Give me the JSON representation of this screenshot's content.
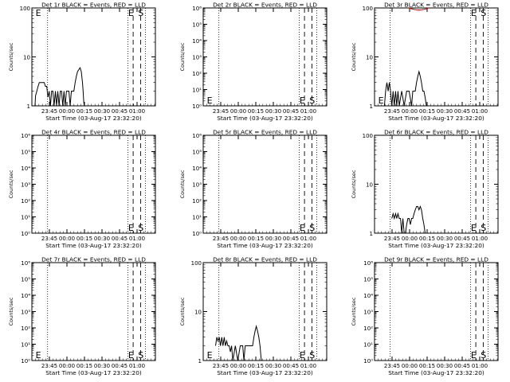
{
  "chart_data": [
    {
      "type": "line",
      "title": "Det 1r BLACK = Events, RED = LLD",
      "ylabel": "Counts/sec",
      "xlabel": "Start Time (03-Aug-17 23:32:20)",
      "yscale": "log",
      "ylim": [
        1,
        100
      ],
      "yticks": [
        "1",
        "10",
        "100"
      ],
      "xticks": [
        "23:45",
        "00:00",
        "00:15",
        "00:30",
        "00:45",
        "01:00"
      ],
      "xlim_minutes": [
        0,
        100
      ],
      "series": [
        {
          "color": "#000000",
          "points": [
            [
              2,
              1
            ],
            [
              2.5,
              1
            ],
            [
              3,
              1.6
            ],
            [
              4,
              2
            ],
            [
              5,
              2.5
            ],
            [
              6,
              3
            ],
            [
              8,
              3
            ],
            [
              10,
              3
            ],
            [
              11,
              2.5
            ],
            [
              12,
              2.5
            ],
            [
              13,
              1.5
            ],
            [
              14,
              2
            ],
            [
              15,
              1
            ],
            [
              16,
              2
            ],
            [
              17,
              2
            ],
            [
              18,
              1
            ],
            [
              19,
              2
            ],
            [
              20,
              1
            ],
            [
              21,
              2
            ],
            [
              22,
              1
            ],
            [
              23,
              2
            ],
            [
              24,
              2
            ],
            [
              25,
              1
            ],
            [
              26,
              2
            ],
            [
              27,
              1
            ],
            [
              28,
              2
            ],
            [
              29,
              2
            ],
            [
              30,
              2
            ],
            [
              31,
              1
            ],
            [
              32,
              2
            ],
            [
              33,
              2
            ],
            [
              34,
              2
            ],
            [
              35,
              3
            ],
            [
              36,
              4
            ],
            [
              37,
              5
            ],
            [
              38,
              5.5
            ],
            [
              39,
              6
            ],
            [
              40,
              5
            ],
            [
              41,
              3
            ],
            [
              41.5,
              2
            ],
            [
              42,
              1.2
            ],
            [
              42.5,
              1
            ]
          ]
        }
      ],
      "markers": [
        {
          "label": "E",
          "x": 2
        },
        {
          "label": "E",
          "x": 77
        },
        {
          "label": "S",
          "x": 85
        }
      ]
    },
    {
      "type": "line",
      "title": "Det 2r BLACK = Events, RED = LLD",
      "ylabel": "Counts/sec",
      "xlabel": "Start Time (03-Aug-17 23:32:20)",
      "yscale": "log",
      "ylim": [
        1,
        1000000
      ],
      "yticks": [
        "10⁰",
        "10¹",
        "10²",
        "10³",
        "10⁴",
        "10⁵",
        "10⁶"
      ],
      "xticks": [
        "23:45",
        "00:00",
        "00:15",
        "00:30",
        "00:45",
        "01:00"
      ],
      "xlim_minutes": [
        0,
        100
      ],
      "series": [],
      "markers": [
        {
          "label": "E",
          "x": 2
        },
        {
          "label": "E",
          "x": 77
        },
        {
          "label": "S",
          "x": 85
        }
      ]
    },
    {
      "type": "line",
      "title": "Det 3r BLACK = Events, RED = LLD",
      "ylabel": "Counts/sec",
      "xlabel": "Start Time (03-Aug-17 23:32:20)",
      "yscale": "log",
      "ylim": [
        1,
        100
      ],
      "yticks": [
        "1",
        "10",
        "100"
      ],
      "xticks": [
        "23:45",
        "00:00",
        "00:15",
        "00:30",
        "00:45",
        "01:00"
      ],
      "xlim_minutes": [
        0,
        100
      ],
      "series": [
        {
          "color": "#000000",
          "points": [
            [
              8,
              1
            ],
            [
              9,
              2
            ],
            [
              10,
              3
            ],
            [
              11,
              2
            ],
            [
              12,
              3
            ],
            [
              13,
              2
            ],
            [
              14,
              1
            ],
            [
              15,
              2
            ],
            [
              16,
              1
            ],
            [
              17,
              2
            ],
            [
              18,
              1
            ],
            [
              19,
              2
            ],
            [
              20,
              1
            ],
            [
              22,
              2
            ],
            [
              24,
              1
            ],
            [
              26,
              2
            ],
            [
              28,
              2
            ],
            [
              30,
              1
            ],
            [
              31,
              2
            ],
            [
              32,
              2
            ],
            [
              33,
              2
            ],
            [
              34,
              3
            ],
            [
              35,
              4
            ],
            [
              36,
              5
            ],
            [
              37,
              4
            ],
            [
              38,
              3
            ],
            [
              39,
              2
            ],
            [
              40,
              2
            ],
            [
              41,
              1.5
            ],
            [
              42,
              1
            ]
          ]
        },
        {
          "color": "#cc0000",
          "points": [
            [
              28,
              100
            ],
            [
              30,
              96
            ],
            [
              32,
              94
            ],
            [
              34,
              92
            ],
            [
              36,
              91
            ],
            [
              38,
              92
            ],
            [
              40,
              94
            ],
            [
              42,
              96
            ],
            [
              44,
              100
            ]
          ]
        }
      ],
      "markers": [
        {
          "label": "E",
          "x": 2
        },
        {
          "label": "E",
          "x": 77
        },
        {
          "label": "S",
          "x": 85
        }
      ]
    },
    {
      "type": "line",
      "title": "Det 4r BLACK = Events, RED = LLD",
      "ylabel": "Counts/sec",
      "xlabel": "Start Time (03-Aug-17 23:32:20)",
      "yscale": "log",
      "ylim": [
        1,
        1000000
      ],
      "yticks": [
        "10⁰",
        "10¹",
        "10²",
        "10³",
        "10⁴",
        "10⁵",
        "10⁶"
      ],
      "xticks": [
        "23:45",
        "00:00",
        "00:15",
        "00:30",
        "00:45",
        "01:00"
      ],
      "xlim_minutes": [
        0,
        100
      ],
      "series": [],
      "markers": [
        {
          "label": "E",
          "x": 77
        },
        {
          "label": "S",
          "x": 85
        }
      ]
    },
    {
      "type": "line",
      "title": "Det 5r BLACK = Events, RED = LLD",
      "ylabel": "Counts/sec",
      "xlabel": "Start Time (03-Aug-17 23:32:20)",
      "yscale": "log",
      "ylim": [
        1,
        1000000
      ],
      "yticks": [
        "10⁰",
        "10¹",
        "10²",
        "10³",
        "10⁴",
        "10⁵",
        "10⁶"
      ],
      "xticks": [
        "23:45",
        "00:00",
        "00:15",
        "00:30",
        "00:45",
        "01:00"
      ],
      "xlim_minutes": [
        0,
        100
      ],
      "series": [],
      "markers": [
        {
          "label": "E",
          "x": 77
        },
        {
          "label": "S",
          "x": 85
        }
      ]
    },
    {
      "type": "line",
      "title": "Det 6r BLACK = Events, RED = LLD",
      "ylabel": "Counts/sec",
      "xlabel": "Start Time (03-Aug-17 23:32:20)",
      "yscale": "log",
      "ylim": [
        1,
        100
      ],
      "yticks": [
        "1",
        "10",
        "100"
      ],
      "xticks": [
        "23:45",
        "00:00",
        "00:15",
        "00:30",
        "00:45",
        "01:00"
      ],
      "xlim_minutes": [
        0,
        100
      ],
      "series": [
        {
          "color": "#000000",
          "points": [
            [
              14,
              2
            ],
            [
              15,
              2.5
            ],
            [
              16,
              2
            ],
            [
              17,
              2.5
            ],
            [
              18,
              2
            ],
            [
              19,
              2.5
            ],
            [
              20,
              2
            ],
            [
              21,
              2
            ],
            [
              22,
              1
            ],
            [
              23,
              2
            ],
            [
              24,
              1
            ],
            [
              25,
              1
            ],
            [
              26,
              1.5
            ],
            [
              27,
              2
            ],
            [
              28,
              2
            ],
            [
              29,
              1.5
            ],
            [
              30,
              2
            ],
            [
              31,
              2
            ],
            [
              32,
              2.5
            ],
            [
              33,
              3
            ],
            [
              34,
              3.5
            ],
            [
              35,
              3.5
            ],
            [
              36,
              3
            ],
            [
              37,
              3.5
            ],
            [
              38,
              3
            ],
            [
              39,
              2
            ],
            [
              40,
              1.5
            ],
            [
              41,
              1
            ]
          ]
        }
      ],
      "markers": [
        {
          "label": "E",
          "x": 77
        },
        {
          "label": "S",
          "x": 85
        }
      ]
    },
    {
      "type": "line",
      "title": "Det 7r BLACK = Events, RED = LLD",
      "ylabel": "Counts/sec",
      "xlabel": "Start Time (03-Aug-17 23:32:20)",
      "yscale": "log",
      "ylim": [
        1,
        1000000
      ],
      "yticks": [
        "10⁰",
        "10¹",
        "10²",
        "10³",
        "10⁴",
        "10⁵",
        "10⁶"
      ],
      "xticks": [
        "23:45",
        "00:00",
        "00:15",
        "00:30",
        "00:45",
        "01:00"
      ],
      "xlim_minutes": [
        0,
        100
      ],
      "series": [],
      "markers": [
        {
          "label": "E",
          "x": 2
        },
        {
          "label": "E",
          "x": 77
        },
        {
          "label": "S",
          "x": 85
        }
      ]
    },
    {
      "type": "line",
      "title": "Det 8r BLACK = Events, RED = LLD",
      "ylabel": "Counts/sec",
      "xlabel": "Start Time (03-Aug-17 23:32:20)",
      "yscale": "log",
      "ylim": [
        1,
        100
      ],
      "yticks": [
        "1",
        "10",
        "100"
      ],
      "xticks": [
        "23:45",
        "00:00",
        "00:15",
        "00:30",
        "00:45",
        "01:00"
      ],
      "xlim_minutes": [
        0,
        100
      ],
      "series": [
        {
          "color": "#000000",
          "points": [
            [
              10,
              2
            ],
            [
              11,
              3
            ],
            [
              12,
              2.5
            ],
            [
              13,
              3
            ],
            [
              14,
              2
            ],
            [
              15,
              3
            ],
            [
              16,
              2
            ],
            [
              17,
              3
            ],
            [
              18,
              2
            ],
            [
              19,
              2.5
            ],
            [
              20,
              2
            ],
            [
              21,
              2
            ],
            [
              22,
              1.5
            ],
            [
              23,
              2
            ],
            [
              24,
              1
            ],
            [
              26,
              2
            ],
            [
              28,
              1
            ],
            [
              30,
              2
            ],
            [
              32,
              2
            ],
            [
              33,
              1
            ],
            [
              34,
              2
            ],
            [
              36,
              2
            ],
            [
              38,
              2
            ],
            [
              40,
              2
            ],
            [
              41,
              3
            ],
            [
              42,
              4
            ],
            [
              43,
              5
            ],
            [
              44,
              4
            ],
            [
              45,
              3
            ],
            [
              46,
              2
            ],
            [
              47,
              1
            ]
          ]
        }
      ],
      "markers": [
        {
          "label": "E",
          "x": 2
        },
        {
          "label": "E",
          "x": 77
        },
        {
          "label": "S",
          "x": 85
        }
      ]
    },
    {
      "type": "line",
      "title": "Det 9r BLACK = Events, RED = LLD",
      "ylabel": "Counts/sec",
      "xlabel": "Start Time (03-Aug-17 23:32:20)",
      "yscale": "log",
      "ylim": [
        1,
        1000000
      ],
      "yticks": [
        "10⁰",
        "10¹",
        "10²",
        "10³",
        "10⁴",
        "10⁵",
        "10⁶"
      ],
      "xticks": [
        "23:45",
        "00:00",
        "00:15",
        "00:30",
        "00:45",
        "01:00"
      ],
      "xlim_minutes": [
        0,
        100
      ],
      "series": [],
      "markers": [
        {
          "label": "E",
          "x": 77
        },
        {
          "label": "S",
          "x": 85
        }
      ]
    }
  ],
  "guides_minutes": {
    "dotted": [
      12.7,
      77.7,
      92
    ],
    "dashed": [
      82,
      88
    ]
  }
}
